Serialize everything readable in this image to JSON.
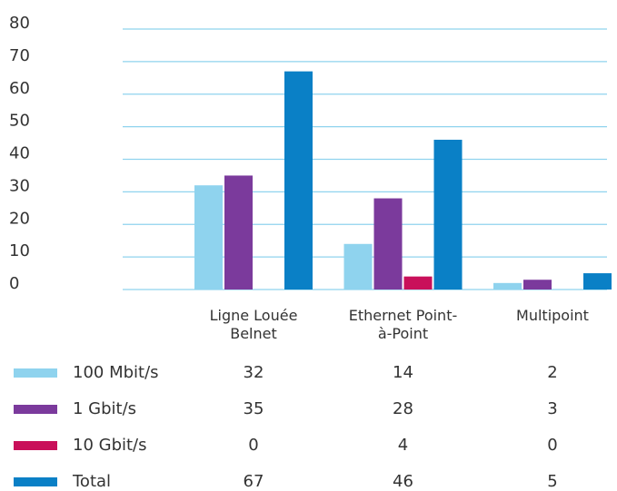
{
  "chart_data": {
    "type": "bar",
    "categories": [
      "Ligne Louée Belnet",
      "Ethernet Point-à-Point",
      "Multipoint"
    ],
    "series": [
      {
        "name": "100 Mbit/s",
        "color": "#8fd3ee",
        "values": [
          32,
          14,
          2
        ]
      },
      {
        "name": "1 Gbit/s",
        "color": "#7b3a9c",
        "values": [
          35,
          28,
          3
        ]
      },
      {
        "name": "10 Gbit/s",
        "color": "#c9105a",
        "values": [
          0,
          4,
          0
        ]
      },
      {
        "name": "Total",
        "color": "#0a80c6",
        "values": [
          67,
          46,
          5
        ]
      }
    ],
    "ylim": [
      0,
      80
    ],
    "yticks": [
      0,
      10,
      20,
      30,
      40,
      50,
      60,
      70,
      80
    ],
    "grid": true
  }
}
